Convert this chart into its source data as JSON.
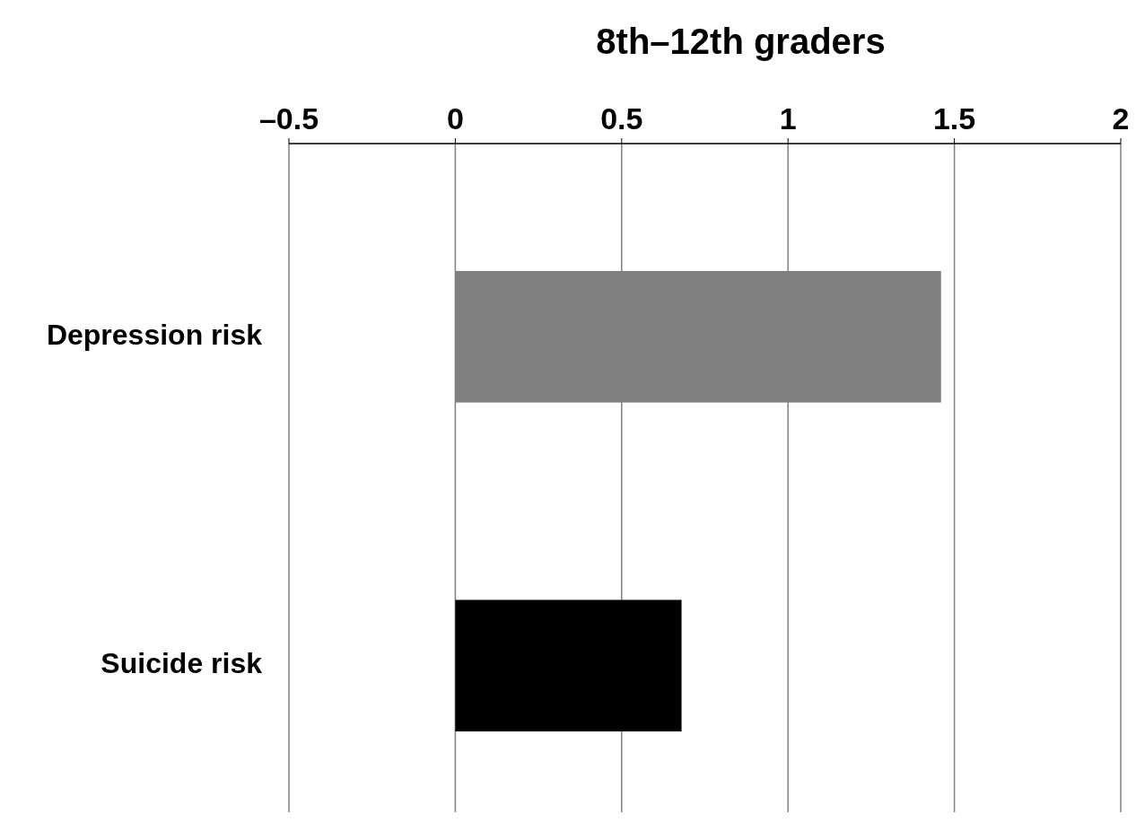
{
  "chart_data": {
    "type": "bar",
    "orientation": "horizontal",
    "title": "8th–12th graders",
    "categories": [
      "Depression risk",
      "Suicide risk"
    ],
    "values": [
      1.46,
      0.68
    ],
    "colors": [
      "#808080",
      "#000000"
    ],
    "xlim": [
      -0.5,
      2
    ],
    "xticks": [
      {
        "value": -0.5,
        "label": "–0.5"
      },
      0,
      0.5,
      1,
      1.5,
      2
    ],
    "grid": "x"
  }
}
